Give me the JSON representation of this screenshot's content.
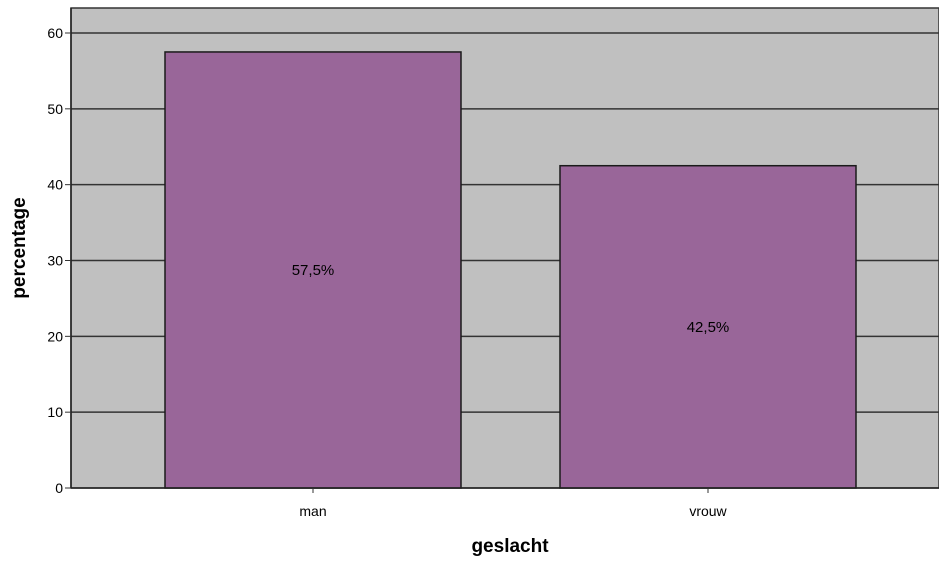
{
  "chart_data": {
    "type": "bar",
    "categories": [
      "man",
      "vrouw"
    ],
    "values": [
      57.5,
      42.5
    ],
    "data_labels": [
      "57,5%",
      "42,5%"
    ],
    "xlabel": "geslacht",
    "ylabel": "percentage",
    "ylim": [
      0,
      62
    ],
    "yticks": [
      0,
      10,
      20,
      30,
      40,
      50,
      60
    ],
    "grid": true,
    "legend": "none",
    "colors": {
      "bar_fill": "#996699",
      "bar_stroke": "#1a1a1a",
      "plot_background": "#c0c0c0",
      "gridline": "#333333"
    }
  }
}
